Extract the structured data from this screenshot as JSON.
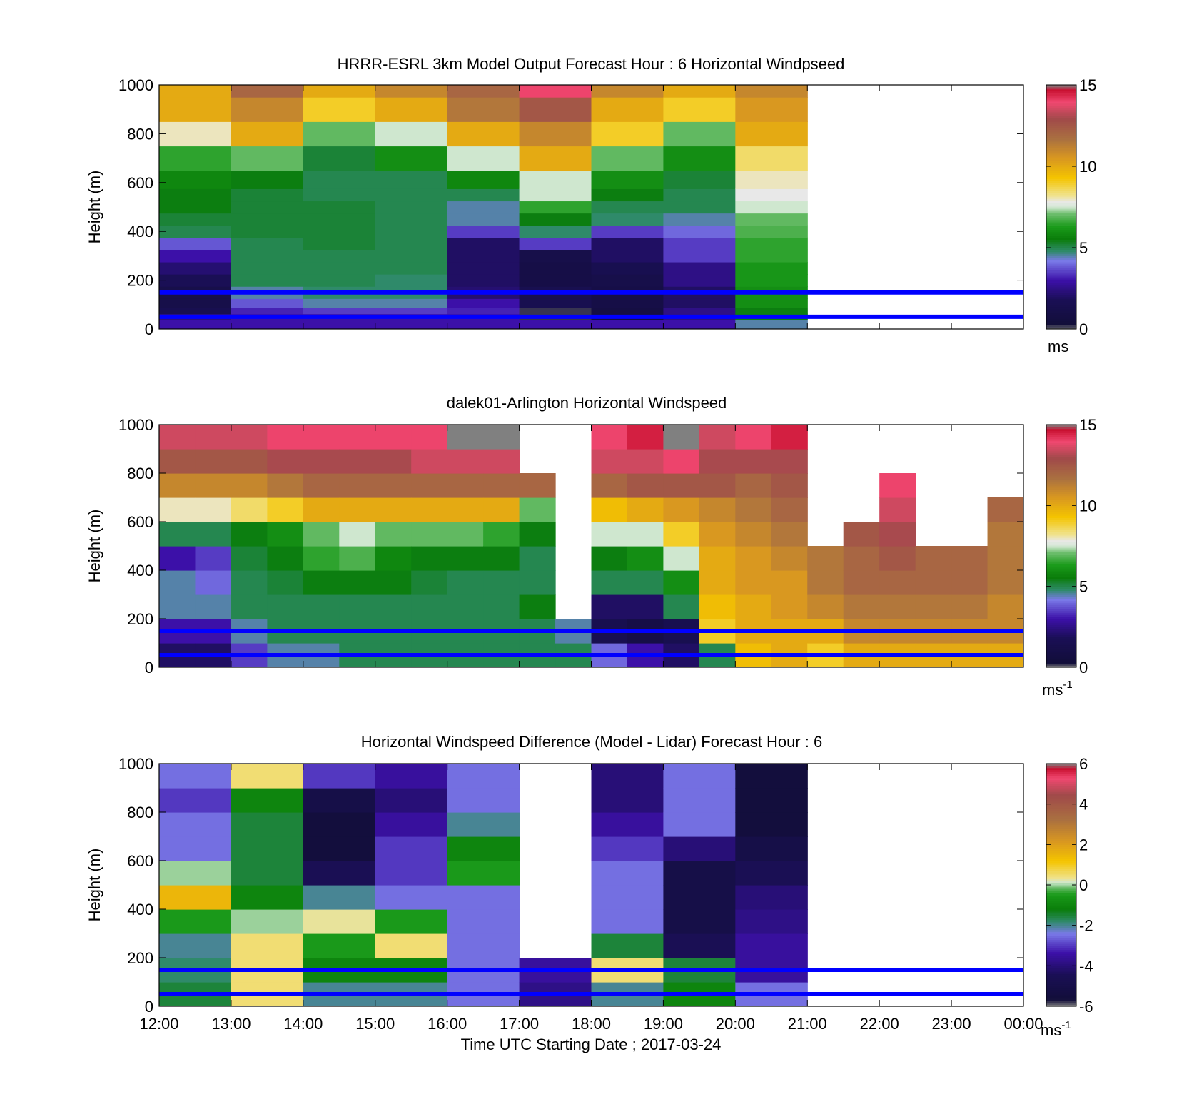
{
  "colors": {
    "speed_stops": [
      [
        0.0,
        "#808080"
      ],
      [
        0.02,
        "#120e3a"
      ],
      [
        0.12,
        "#1a0f55"
      ],
      [
        0.2,
        "#3c10a8"
      ],
      [
        0.28,
        "#7a7ae8"
      ],
      [
        0.32,
        "#2f8a6a"
      ],
      [
        0.37,
        "#0a7d0a"
      ],
      [
        0.42,
        "#1a9a1a"
      ],
      [
        0.47,
        "#66bb66"
      ],
      [
        0.5,
        "#cfe7cf"
      ],
      [
        0.52,
        "#e8e8e8"
      ],
      [
        0.55,
        "#f0e28a"
      ],
      [
        0.62,
        "#f4c400"
      ],
      [
        0.7,
        "#d99820"
      ],
      [
        0.78,
        "#aa7040"
      ],
      [
        0.86,
        "#a04a4a"
      ],
      [
        0.93,
        "#f04870"
      ],
      [
        0.98,
        "#c81030"
      ],
      [
        1.0,
        "#808080"
      ]
    ],
    "diff_stops": [
      [
        0.0,
        "#808080"
      ],
      [
        0.03,
        "#120e3a"
      ],
      [
        0.13,
        "#1a0f55"
      ],
      [
        0.22,
        "#3c10a8"
      ],
      [
        0.3,
        "#7a7ae8"
      ],
      [
        0.35,
        "#2f8a6a"
      ],
      [
        0.4,
        "#0a7d0a"
      ],
      [
        0.46,
        "#1a9a1a"
      ],
      [
        0.49,
        "#66bb66"
      ],
      [
        0.51,
        "#cfe7cf"
      ],
      [
        0.53,
        "#f0e28a"
      ],
      [
        0.6,
        "#f4c400"
      ],
      [
        0.68,
        "#d99820"
      ],
      [
        0.77,
        "#aa7040"
      ],
      [
        0.87,
        "#a04a4a"
      ],
      [
        0.94,
        "#f04870"
      ],
      [
        0.98,
        "#c81030"
      ],
      [
        1.0,
        "#808080"
      ]
    ],
    "marker_line": "#0000ff"
  },
  "chart_data": [
    {
      "type": "heatmap",
      "title": "HRRR-ESRL 3km Model Output   Forecast Hour : 6 Horizontal Windpseed",
      "ylabel": "Height (m)",
      "xlim": [
        "12:00",
        "00:00"
      ],
      "ylim": [
        0,
        1000
      ],
      "yticks": [
        "0",
        "200",
        "400",
        "600",
        "800",
        "1000"
      ],
      "colorbar": {
        "min": 0,
        "max": 15,
        "ticks": [
          "0",
          "5",
          "10",
          "15"
        ],
        "unit": "ms"
      },
      "hours": [
        12,
        13,
        14,
        15,
        16,
        17,
        18,
        19,
        20
      ],
      "heights": [
        25,
        50,
        75,
        100,
        150,
        200,
        250,
        300,
        350,
        400,
        450,
        500,
        550,
        600,
        700,
        800,
        900,
        1000
      ],
      "values": [
        [
          3.0,
          2.5,
          1.5,
          1.2,
          1.2,
          1.8,
          2.2,
          3.0,
          3.8,
          5.0,
          5.2,
          5.5,
          5.5,
          5.8,
          6.5,
          8.0,
          10.0,
          10.0
        ],
        [
          3.0,
          3.0,
          3.2,
          3.8,
          4.5,
          5.0,
          5.0,
          5.0,
          5.0,
          5.2,
          5.2,
          5.2,
          5.2,
          5.5,
          7.0,
          10.0,
          11.0,
          12.0
        ],
        [
          3.0,
          3.0,
          3.5,
          4.5,
          4.8,
          5.0,
          5.0,
          5.0,
          5.2,
          5.2,
          5.2,
          5.2,
          5.0,
          5.0,
          5.2,
          7.0,
          9.0,
          10.0
        ],
        [
          3.0,
          3.0,
          3.5,
          4.5,
          4.8,
          4.8,
          5.0,
          5.0,
          5.0,
          5.0,
          5.0,
          5.0,
          5.0,
          5.0,
          6.0,
          7.5,
          10.0,
          11.0
        ],
        [
          3.0,
          3.0,
          3.2,
          3.0,
          2.2,
          2.0,
          2.0,
          2.0,
          2.0,
          3.5,
          4.5,
          4.5,
          5.0,
          5.8,
          7.5,
          10.0,
          11.5,
          12.0
        ],
        [
          3.0,
          0.2,
          0.2,
          1.5,
          1.5,
          1.0,
          1.0,
          1.2,
          3.5,
          4.8,
          5.5,
          6.5,
          7.5,
          7.5,
          10.0,
          11.0,
          12.5,
          14.0
        ],
        [
          3.0,
          0.8,
          0.8,
          1.0,
          1.0,
          1.2,
          1.5,
          2.0,
          2.0,
          3.5,
          4.8,
          5.0,
          5.5,
          6.0,
          7.0,
          9.0,
          10.0,
          11.0
        ],
        [
          3.0,
          2.5,
          2.5,
          2.0,
          2.0,
          2.5,
          2.5,
          3.5,
          3.5,
          4.0,
          4.5,
          5.0,
          5.0,
          5.2,
          6.0,
          7.0,
          9.0,
          10.0
        ],
        [
          4.5,
          5.5,
          5.5,
          6.0,
          6.0,
          6.2,
          6.2,
          6.5,
          6.5,
          6.8,
          7.0,
          7.5,
          7.8,
          8.0,
          8.5,
          10.0,
          10.5,
          11.0
        ]
      ]
    },
    {
      "type": "heatmap",
      "title": "dalek01-Arlington  Horizontal Windspeed",
      "ylabel": "Height (m)",
      "xlim": [
        "12:00",
        "00:00"
      ],
      "ylim": [
        0,
        1000
      ],
      "yticks": [
        "0",
        "200",
        "400",
        "600",
        "800",
        "1000"
      ],
      "colorbar": {
        "min": 0,
        "max": 15,
        "ticks": [
          "0",
          "5",
          "10",
          "15"
        ],
        "unit": "ms",
        "unit_exp": "-1"
      },
      "times": [
        12.0,
        12.5,
        13.0,
        13.5,
        14.0,
        14.5,
        15.0,
        15.5,
        16.0,
        16.5,
        17.0,
        17.5,
        18.0,
        18.5,
        19.0,
        19.5,
        20.0,
        20.5,
        21.0,
        21.5,
        22.0,
        22.5,
        23.0,
        23.5
      ],
      "heights": [
        50,
        150,
        250,
        350,
        450,
        550,
        650,
        750,
        850,
        950
      ],
      "values": [
        [
          2.0,
          3.0,
          4.5,
          4.5,
          3.0,
          5.0,
          8.0,
          11.0,
          12.5,
          13.5
        ],
        [
          2.0,
          3.0,
          4.5,
          4.0,
          3.5,
          5.0,
          8.0,
          11.0,
          12.5,
          13.5
        ],
        [
          3.5,
          4.5,
          5.0,
          5.0,
          5.2,
          5.5,
          8.5,
          11.0,
          12.5,
          13.5
        ],
        [
          4.5,
          5.0,
          5.0,
          5.2,
          5.5,
          6.0,
          9.0,
          11.5,
          13.0,
          14.0
        ],
        [
          4.5,
          5.0,
          5.0,
          5.5,
          6.5,
          7.0,
          10.0,
          12.0,
          13.0,
          14.0
        ],
        [
          5.0,
          5.0,
          5.0,
          5.5,
          6.8,
          7.5,
          10.0,
          12.0,
          13.0,
          14.0
        ],
        [
          5.0,
          5.0,
          5.0,
          5.5,
          5.8,
          7.0,
          10.0,
          12.0,
          13.0,
          14.0
        ],
        [
          5.0,
          5.0,
          5.0,
          5.2,
          5.5,
          7.0,
          10.0,
          12.0,
          13.5,
          14.0
        ],
        [
          5.0,
          5.0,
          5.0,
          5.0,
          5.5,
          7.0,
          10.0,
          12.0,
          13.5,
          0.0
        ],
        [
          5.0,
          5.0,
          5.0,
          5.0,
          5.5,
          6.5,
          10.0,
          12.0,
          13.5,
          0.0
        ],
        [
          5.0,
          5.0,
          5.5,
          5.0,
          5.0,
          5.5,
          7.0,
          12.0,
          null,
          null
        ],
        [
          5.0,
          4.5,
          null,
          null,
          null,
          null,
          null,
          null,
          null,
          null
        ],
        [
          4.0,
          1.5,
          2.0,
          5.0,
          5.5,
          7.5,
          9.5,
          12.0,
          13.5,
          14.0
        ],
        [
          3.0,
          1.0,
          2.0,
          5.0,
          6.0,
          7.5,
          10.0,
          12.5,
          13.5,
          14.5
        ],
        [
          2.0,
          1.5,
          5.0,
          6.0,
          7.5,
          9.0,
          10.5,
          12.5,
          14.0,
          15.0
        ],
        [
          5.0,
          9.0,
          9.5,
          10.0,
          10.0,
          10.5,
          11.0,
          12.5,
          13.0,
          13.5
        ],
        [
          9.5,
          10.0,
          10.0,
          10.5,
          10.5,
          11.0,
          11.5,
          12.0,
          13.0,
          14.0
        ],
        [
          10.0,
          10.0,
          10.5,
          10.5,
          11.0,
          11.5,
          12.0,
          12.5,
          13.0,
          14.5
        ],
        [
          9.0,
          10.0,
          11.0,
          11.5,
          11.5,
          null,
          null,
          null,
          null,
          null
        ],
        [
          10.0,
          11.0,
          11.5,
          12.0,
          12.0,
          12.5,
          null,
          null,
          null,
          null
        ],
        [
          10.0,
          11.0,
          11.5,
          12.0,
          12.5,
          13.0,
          13.5,
          14.0,
          null,
          null
        ],
        [
          10.0,
          11.0,
          11.5,
          12.0,
          12.0,
          null,
          null,
          null,
          null,
          null
        ],
        [
          10.0,
          11.0,
          11.5,
          12.0,
          12.0,
          null,
          null,
          null,
          null,
          null
        ],
        [
          10.0,
          11.0,
          11.0,
          11.5,
          11.5,
          11.5,
          12.0,
          null,
          null,
          null
        ]
      ]
    },
    {
      "type": "heatmap",
      "title": "Horizontal Windspeed Difference (Model - Lidar) Forecast Hour : 6",
      "ylabel": "Height (m)",
      "xlabel": "Time UTC  Starting Date ; 2017-03-24",
      "xlim": [
        "12:00",
        "00:00"
      ],
      "xticks": [
        "12:00",
        "13:00",
        "14:00",
        "15:00",
        "16:00",
        "17:00",
        "18:00",
        "19:00",
        "20:00",
        "21:00",
        "22:00",
        "23:00",
        "00:00"
      ],
      "ylim": [
        0,
        1000
      ],
      "yticks": [
        "0",
        "200",
        "400",
        "600",
        "800",
        "1000"
      ],
      "colorbar": {
        "min": -6,
        "max": 6,
        "ticks": [
          "-6",
          "-4",
          "-2",
          "0",
          "2",
          "4",
          "6"
        ],
        "unit": "ms",
        "unit_exp": "-1"
      },
      "hours": [
        12,
        13,
        14,
        15,
        16,
        17,
        18,
        19,
        20
      ],
      "heights": [
        50,
        150,
        250,
        350,
        450,
        550,
        650,
        750,
        850,
        950
      ],
      "values": [
        [
          -1.5,
          -1.8,
          -2.0,
          -0.5,
          1.5,
          0.0,
          -2.5,
          -2.5,
          -3.0,
          -2.5
        ],
        [
          0.5,
          0.5,
          0.5,
          0.0,
          -1.0,
          -1.5,
          -1.5,
          -1.5,
          -1.0,
          0.5
        ],
        [
          -2.0,
          -1.0,
          -0.5,
          0.3,
          -2.0,
          -4.5,
          -5.5,
          -5.5,
          -5.0,
          -3.0
        ],
        [
          -2.0,
          -1.0,
          0.5,
          -0.5,
          -2.5,
          -3.0,
          -3.0,
          -3.5,
          -4.0,
          -3.5
        ],
        [
          -2.5,
          -2.5,
          -2.5,
          -2.5,
          -2.5,
          -0.5,
          -1.0,
          -2.0,
          -2.5,
          -2.5
        ],
        [
          -3.8,
          -3.5,
          null,
          null,
          null,
          null,
          null,
          null,
          null,
          null
        ],
        [
          -2.0,
          0.5,
          -1.5,
          -2.5,
          -2.5,
          -2.5,
          -3.0,
          -3.5,
          -4.0,
          -4.0
        ],
        [
          -1.0,
          -1.5,
          -4.5,
          -5.0,
          -5.0,
          -5.0,
          -4.0,
          -2.5,
          -2.5,
          -2.5
        ],
        [
          -2.5,
          -3.5,
          -3.5,
          -3.8,
          -4.0,
          -4.5,
          -5.0,
          -5.5,
          -5.5,
          -5.5
        ]
      ]
    }
  ],
  "reference_lines_m": [
    50,
    150
  ]
}
